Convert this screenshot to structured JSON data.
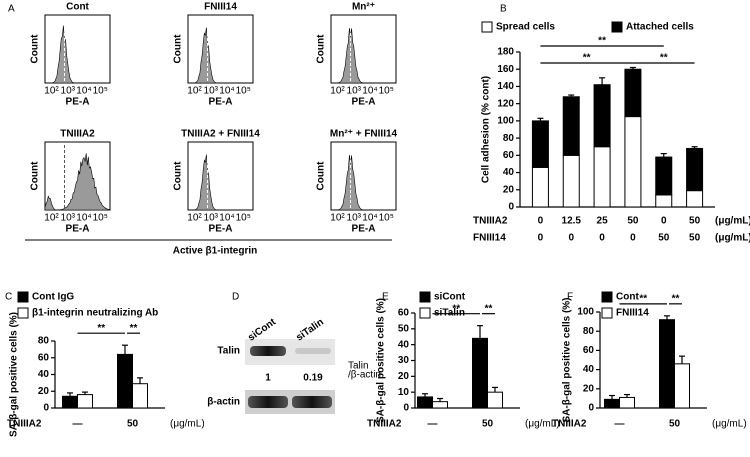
{
  "panel_labels": [
    "A",
    "B",
    "C",
    "D",
    "E",
    "F"
  ],
  "flow": {
    "panels": [
      {
        "title": "Cont"
      },
      {
        "title": "FNIII14"
      },
      {
        "title": "Mn²⁺"
      },
      {
        "title": "TNIIIA2"
      },
      {
        "title": "TNIIIA2 + FNIII14"
      },
      {
        "title": "Mn²⁺ + FNIII14"
      }
    ],
    "ylabel": "Count",
    "xlabel": "PE-A",
    "xticks": [
      "10²",
      "10³",
      "10⁴",
      "10⁵"
    ],
    "caption": "Active β1-integrin"
  },
  "blot": {
    "lanes": [
      "siCont",
      "siTalin"
    ],
    "rows": [
      "Talin",
      "β-actin"
    ],
    "ratios": [
      "1",
      "0.19"
    ],
    "ratio_label": [
      "Talin",
      "/β-actin"
    ]
  },
  "chart_data": [
    {
      "type": "bar",
      "stacked": true,
      "ylabel": "Cell adhesion  (% cont)",
      "ylim": [
        0,
        180
      ],
      "yticks": [
        0,
        20,
        40,
        60,
        80,
        100,
        120,
        140,
        160,
        180
      ],
      "condition_rows": [
        {
          "label": "TNIIIA2",
          "values": [
            "0",
            "12.5",
            "25",
            "50",
            "0",
            "50"
          ],
          "unit": "(μg/mL)"
        },
        {
          "label": "FNIII14",
          "values": [
            "0",
            "0",
            "0",
            "0",
            "50",
            "50"
          ],
          "unit": "(μg/mL)"
        }
      ],
      "series": [
        {
          "name": "Spread cells",
          "color": "#ffffff",
          "values": [
            46,
            60,
            70,
            105,
            14,
            19
          ],
          "errors": [
            2,
            3,
            2,
            7,
            2,
            2
          ]
        },
        {
          "name": "Attached cells",
          "color": "#000000",
          "values": [
            54,
            68,
            72,
            55,
            44,
            49
          ],
          "errors": [
            3,
            2,
            8,
            2,
            4,
            2
          ]
        }
      ],
      "annotations": [
        "**",
        "**",
        "**"
      ]
    },
    {
      "type": "bar",
      "ylabel": "SA-β-gal positive cells (%)",
      "xlabel": "TNIIIA2",
      "x_unit": "(μg/mL)",
      "categories": [
        "—",
        "50"
      ],
      "ylim": [
        0,
        80
      ],
      "yticks": [
        0,
        20,
        40,
        60,
        80
      ],
      "series": [
        {
          "name": "Cont IgG",
          "color": "#000000",
          "values": [
            14,
            64
          ],
          "errors": [
            4,
            11
          ]
        },
        {
          "name": "β1-integrin neutralizing Ab",
          "color": "#ffffff",
          "values": [
            16,
            29
          ],
          "errors": [
            3,
            7
          ]
        }
      ],
      "annotations": [
        "**",
        "**"
      ]
    },
    {
      "type": "bar",
      "ylabel": "SA-β-gal positive cells (%)",
      "xlabel": "TNIIIA2",
      "x_unit": "(μg/mL)",
      "categories": [
        "—",
        "50"
      ],
      "ylim": [
        0,
        60
      ],
      "yticks": [
        0,
        10,
        20,
        30,
        40,
        50,
        60
      ],
      "series": [
        {
          "name": "siCont",
          "color": "#000000",
          "values": [
            7,
            44
          ],
          "errors": [
            2,
            8
          ]
        },
        {
          "name": "siTalin",
          "color": "#ffffff",
          "values": [
            4,
            10
          ],
          "errors": [
            2,
            3
          ]
        }
      ],
      "annotations": [
        "**",
        "**"
      ]
    },
    {
      "type": "bar",
      "ylabel": "SA-β-gal positive cells (%)",
      "xlabel": "TNIIIA2",
      "x_unit": "(μg/mL)",
      "categories": [
        "—",
        "50"
      ],
      "ylim": [
        0,
        100
      ],
      "yticks": [
        0,
        20,
        40,
        60,
        80,
        100
      ],
      "series": [
        {
          "name": "Cont",
          "color": "#000000",
          "values": [
            9,
            92
          ],
          "errors": [
            4,
            4
          ]
        },
        {
          "name": "FNIII14",
          "color": "#ffffff",
          "values": [
            11,
            46
          ],
          "errors": [
            3,
            8
          ]
        }
      ],
      "annotations": [
        "**",
        "**"
      ]
    }
  ]
}
